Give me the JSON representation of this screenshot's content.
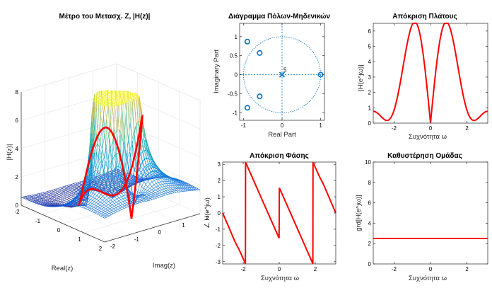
{
  "chart_data": [
    {
      "type": "surface",
      "title": "Μέτρο του Μετασχ. Z, |H(z)|",
      "xlabel": "Real(z)",
      "ylabel": "Imag(z)",
      "zlabel": "|H(z)|",
      "x_ticks": [
        "-2",
        "-1",
        "0",
        "1",
        "2"
      ],
      "y_ticks": [
        "-2",
        "-1",
        "0",
        "1",
        "2"
      ],
      "z_ticks": [
        "0",
        "2",
        "4",
        "6",
        "8"
      ],
      "xlim": [
        -2,
        2
      ],
      "ylim": [
        -2,
        2
      ],
      "zlim": [
        0,
        8
      ],
      "grid": true,
      "colormap": "parula",
      "unit_circle_color": "#ff0000"
    },
    {
      "type": "scatter",
      "title": "Διάγραμμα Πόλων-Μηδενικών",
      "xlabel": "Real Part",
      "ylabel": "Imaginary Part",
      "xlim": [
        -1.1,
        1.1
      ],
      "ylim": [
        -1.2,
        1.35
      ],
      "x_ticks": [
        "-1",
        "0",
        "1"
      ],
      "y_ticks": [
        "1",
        "0.5",
        "0",
        "-0.5",
        "-1"
      ],
      "zeros": [
        [
          -0.9,
          0.87
        ],
        [
          -0.58,
          0.57
        ],
        [
          -0.58,
          -0.57
        ],
        [
          -0.9,
          -0.87
        ],
        [
          1.0,
          0.0
        ]
      ],
      "poles": [
        [
          0.0,
          0.0
        ]
      ],
      "pole_multiplicity": "5",
      "marker_color": "#0072bd"
    },
    {
      "type": "line",
      "title": "Απόκριση Πλάτους",
      "xlabel": "Συχνότητα ω",
      "ylabel": "|H(e^jω)|",
      "xlim": [
        -3.14159,
        3.14159
      ],
      "ylim": [
        0,
        6.5
      ],
      "x_ticks": [
        "-2",
        "0",
        "2"
      ],
      "y_ticks": [
        "0",
        "1",
        "2",
        "3",
        "4",
        "5",
        "6"
      ],
      "series": [
        {
          "expr": "magnitude",
          "color": "#ff0000"
        }
      ],
      "grid": false
    },
    {
      "type": "line",
      "title": "Απόκριση Φάσης",
      "xlabel": "Συχνότητα ω",
      "ylabel": "∠ H(e^jω)",
      "xlim": [
        -3.14159,
        3.14159
      ],
      "ylim": [
        -3.14159,
        3.14159
      ],
      "x_ticks": [
        "-2",
        "0",
        "2"
      ],
      "y_ticks": [
        "3",
        "2",
        "1",
        "0",
        "-1",
        "-2",
        "-3"
      ],
      "series": [
        {
          "expr": "phase",
          "color": "#ff0000"
        }
      ],
      "grid": false
    },
    {
      "type": "line",
      "title": "Καθυστέρηση Ομάδας",
      "xlabel": "Συχνότητα ω",
      "ylabel": "grd[H(e^jω)]",
      "xlim": [
        -3.14159,
        3.14159
      ],
      "ylim": [
        0,
        10
      ],
      "x_ticks": [
        "-2",
        "0",
        "2"
      ],
      "y_ticks": [
        "0",
        "2",
        "4",
        "6",
        "8",
        "10"
      ],
      "series": [
        {
          "x": [
            -3.14159,
            3.14159
          ],
          "y": [
            2.5,
            2.5
          ],
          "color": "#ff0000"
        }
      ],
      "grid": false
    }
  ]
}
